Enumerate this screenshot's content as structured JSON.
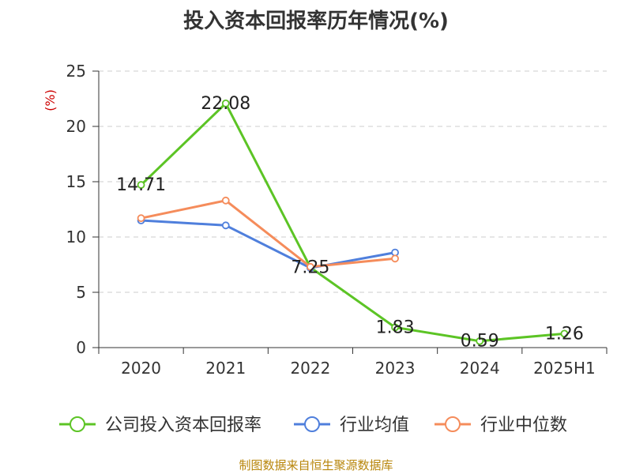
{
  "chart_data": {
    "type": "line",
    "title": "投入资本回报率历年情况(%)",
    "ylabel": "(%)",
    "xlabel": "",
    "categories": [
      "2020",
      "2021",
      "2022",
      "2023",
      "2024",
      "2025H1"
    ],
    "ylim": [
      0,
      25
    ],
    "yticks": [
      0,
      5,
      10,
      15,
      20,
      25
    ],
    "grid": true,
    "legend_position": "bottom",
    "series": [
      {
        "name": "公司投入资本回报率",
        "color": "#5cc425",
        "values": [
          14.71,
          22.08,
          7.25,
          1.83,
          0.59,
          1.26
        ],
        "labels": [
          "14.71",
          "22.08",
          "7.25",
          "1.83",
          "0.59",
          "1.26"
        ]
      },
      {
        "name": "行业均值",
        "color": "#4f7fdc",
        "values": [
          11.5,
          11.05,
          7.2,
          8.6,
          null,
          null
        ]
      },
      {
        "name": "行业中位数",
        "color": "#f58c5b",
        "values": [
          11.7,
          13.3,
          7.3,
          8.05,
          null,
          null
        ]
      }
    ],
    "source": "制图数据来自恒生聚源数据库"
  }
}
